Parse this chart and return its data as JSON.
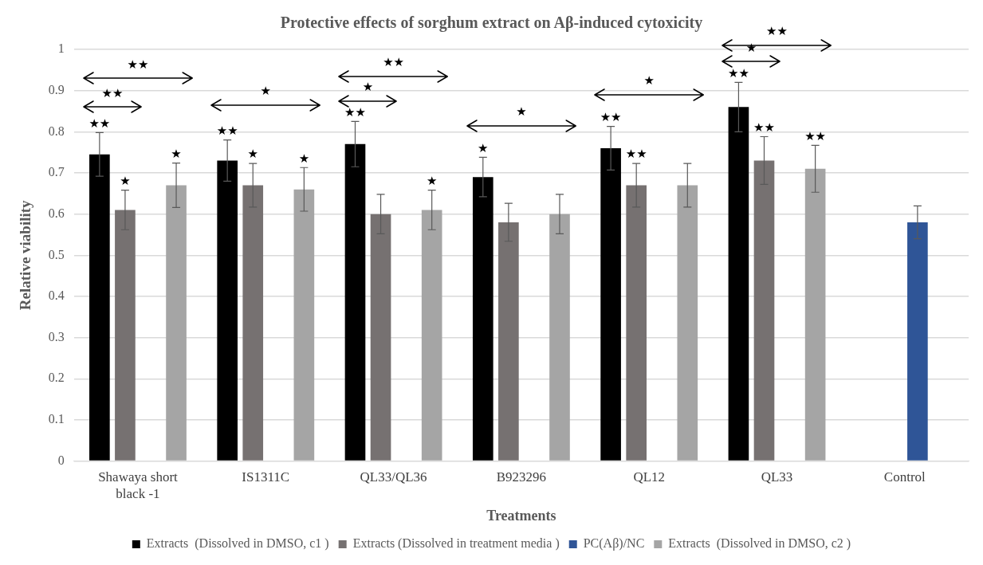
{
  "chart_data": {
    "type": "bar",
    "title": "Protective effects of sorghum extract on Aβ-induced cytoxicity",
    "xlabel": "Treatments",
    "ylabel": "Relative viability",
    "categories": [
      "Shawaya short black -1",
      "IS1311C",
      "QL33/QL36",
      "B923296",
      "QL12",
      "QL33",
      "Control"
    ],
    "series": [
      {
        "name": "Extracts  (Dissolved in DMSO, c1 )",
        "color": "#000000",
        "values": [
          0.745,
          0.73,
          0.77,
          0.69,
          0.76,
          0.86,
          null
        ],
        "errors": [
          0.053,
          0.05,
          0.055,
          0.048,
          0.053,
          0.06,
          null
        ],
        "value_labels": [
          "★★",
          "★★",
          "★★",
          "★",
          "★★",
          "★★",
          null
        ]
      },
      {
        "name": "Extracts (Dissolved in treatment media )",
        "color": "#767171",
        "values": [
          0.61,
          0.67,
          0.6,
          0.58,
          0.67,
          0.73,
          null
        ],
        "errors": [
          0.048,
          0.053,
          0.048,
          0.046,
          0.053,
          0.058,
          null
        ],
        "value_labels": [
          "★",
          "★",
          null,
          null,
          "★★",
          "★★",
          null
        ]
      },
      {
        "name": "PC(Aβ)/NC",
        "color": "#2f5597",
        "values": [
          null,
          null,
          null,
          null,
          null,
          null,
          0.58
        ],
        "errors": [
          null,
          null,
          null,
          null,
          null,
          null,
          0.04
        ]
      },
      {
        "name": "Extracts  (Dissolved in DMSO, c2 )",
        "color": "#a5a5a5",
        "values": [
          0.67,
          0.66,
          0.61,
          0.6,
          0.67,
          0.71,
          null
        ],
        "errors": [
          0.054,
          0.053,
          0.048,
          0.048,
          0.053,
          0.057,
          null
        ],
        "value_labels": [
          "★",
          "★",
          "★",
          null,
          null,
          "★★",
          null
        ]
      }
    ],
    "annotations": [
      "★★",
      "★★",
      "★",
      "★★",
      "★",
      "★",
      "★",
      "★★",
      "★"
    ],
    "ylim": [
      0,
      1
    ],
    "yticks": [
      0,
      0.1,
      0.2,
      0.3,
      0.4,
      0.5,
      0.6,
      0.7,
      0.8,
      0.9,
      1
    ],
    "grid": "y",
    "legend": "bottom"
  }
}
